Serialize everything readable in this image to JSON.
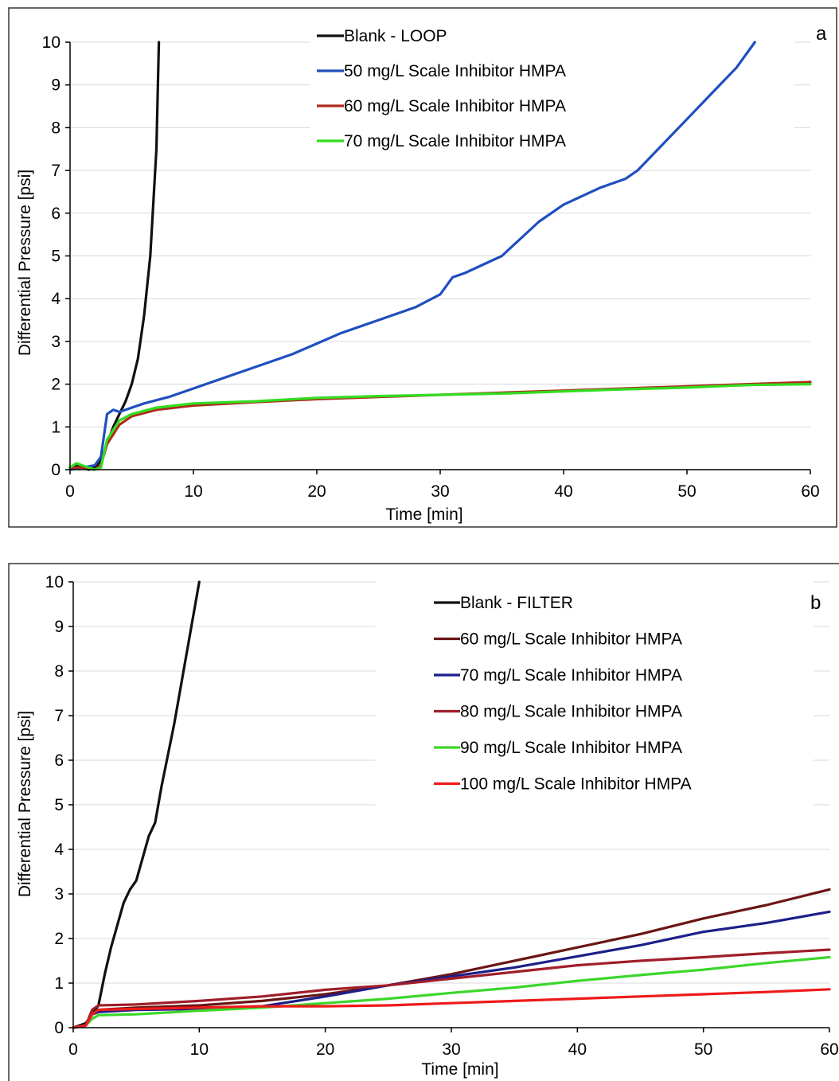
{
  "chart_data": [
    {
      "type": "line",
      "panel_label": "a",
      "xlabel": "Time [min]",
      "ylabel": "Differential Pressure [psi]",
      "xlim": [
        0,
        60
      ],
      "ylim": [
        0,
        10
      ],
      "xticks": [
        0,
        10,
        20,
        30,
        40,
        50,
        60
      ],
      "yticks": [
        0,
        1,
        2,
        3,
        4,
        5,
        6,
        7,
        8,
        9,
        10
      ],
      "grid": "horizontal",
      "legend_position": "top-center",
      "series": [
        {
          "name": "Blank - LOOP",
          "color": "#111111",
          "x": [
            0,
            0.5,
            1,
            1.5,
            2,
            2.5,
            3,
            3.5,
            4,
            4.5,
            5,
            5.5,
            6,
            6.5,
            7,
            7.2
          ],
          "y": [
            0.05,
            0.1,
            0.05,
            0.0,
            0.05,
            0.2,
            0.6,
            1.0,
            1.3,
            1.6,
            2.0,
            2.6,
            3.6,
            5.0,
            7.5,
            10.0
          ]
        },
        {
          "name": "50 mg/L Scale Inhibitor HMPA",
          "color": "#1f4fbf",
          "x": [
            0,
            1,
            2,
            2.5,
            3,
            3.5,
            4,
            5,
            6,
            8,
            10,
            12,
            15,
            18,
            20,
            22,
            25,
            28,
            30,
            31,
            32,
            35,
            38,
            40,
            43,
            45,
            46,
            48,
            50,
            52,
            54,
            55.5
          ],
          "y": [
            0.0,
            0.05,
            0.1,
            0.3,
            1.3,
            1.4,
            1.35,
            1.45,
            1.55,
            1.7,
            1.9,
            2.1,
            2.4,
            2.7,
            2.95,
            3.2,
            3.5,
            3.8,
            4.1,
            4.5,
            4.6,
            5.0,
            5.8,
            6.2,
            6.6,
            6.8,
            7.0,
            7.6,
            8.2,
            8.8,
            9.4,
            10.0
          ]
        },
        {
          "name": "60 mg/L Scale Inhibitor HMPA",
          "color": "#b02a1c",
          "x": [
            0,
            1,
            2,
            2.5,
            3,
            4,
            5,
            7,
            10,
            15,
            20,
            25,
            30,
            35,
            40,
            45,
            50,
            55,
            60
          ],
          "y": [
            0.05,
            0.05,
            0.0,
            0.1,
            0.6,
            1.05,
            1.25,
            1.4,
            1.5,
            1.58,
            1.65,
            1.7,
            1.75,
            1.8,
            1.85,
            1.9,
            1.95,
            2.0,
            2.05
          ]
        },
        {
          "name": "70 mg/L Scale Inhibitor HMPA",
          "color": "#33dd22",
          "x": [
            0,
            0.5,
            1,
            2,
            2.5,
            3,
            4,
            5,
            7,
            10,
            15,
            20,
            25,
            30,
            35,
            40,
            45,
            50,
            55,
            60
          ],
          "y": [
            0.05,
            0.15,
            0.1,
            0.0,
            0.05,
            0.7,
            1.15,
            1.3,
            1.45,
            1.55,
            1.6,
            1.68,
            1.72,
            1.75,
            1.78,
            1.83,
            1.88,
            1.92,
            1.98,
            2.0
          ]
        }
      ]
    },
    {
      "type": "line",
      "panel_label": "b",
      "xlabel": "Time [min]",
      "ylabel": "Differential Pressure [psi]",
      "xlim": [
        0,
        60
      ],
      "ylim": [
        0,
        10
      ],
      "xticks": [
        0,
        10,
        20,
        30,
        40,
        50,
        60
      ],
      "yticks": [
        0,
        1,
        2,
        3,
        4,
        5,
        6,
        7,
        8,
        9,
        10
      ],
      "grid": "horizontal",
      "legend_position": "top-right",
      "series": [
        {
          "name": "Blank - FILTER",
          "color": "#111111",
          "x": [
            0,
            1,
            1.5,
            2,
            2.5,
            3,
            4,
            4.5,
            5,
            6,
            6.5,
            7,
            8,
            9,
            10
          ],
          "y": [
            0.0,
            0.1,
            0.3,
            0.5,
            1.2,
            1.8,
            2.8,
            3.1,
            3.3,
            4.3,
            4.6,
            5.4,
            6.8,
            8.4,
            10.0
          ]
        },
        {
          "name": "60 mg/L Scale Inhibitor HMPA",
          "color": "#6b1515",
          "x": [
            0,
            1,
            1.5,
            2,
            5,
            10,
            15,
            20,
            25,
            30,
            35,
            40,
            45,
            50,
            55,
            60
          ],
          "y": [
            0.0,
            0.05,
            0.3,
            0.4,
            0.45,
            0.5,
            0.6,
            0.75,
            0.95,
            1.2,
            1.5,
            1.8,
            2.1,
            2.45,
            2.75,
            3.1
          ]
        },
        {
          "name": "70 mg/L Scale Inhibitor HMPA",
          "color": "#1c1f8a",
          "x": [
            0,
            1,
            1.5,
            2,
            5,
            10,
            15,
            20,
            25,
            30,
            35,
            40,
            45,
            50,
            55,
            60
          ],
          "y": [
            0.0,
            0.05,
            0.3,
            0.35,
            0.4,
            0.42,
            0.48,
            0.7,
            0.95,
            1.15,
            1.35,
            1.6,
            1.85,
            2.15,
            2.35,
            2.6
          ]
        },
        {
          "name": "80 mg/L Scale Inhibitor HMPA",
          "color": "#a01e2a",
          "x": [
            0,
            1,
            1.5,
            2,
            5,
            10,
            15,
            20,
            25,
            30,
            35,
            40,
            45,
            50,
            55,
            60
          ],
          "y": [
            0.0,
            0.05,
            0.4,
            0.5,
            0.52,
            0.6,
            0.7,
            0.85,
            0.95,
            1.1,
            1.25,
            1.4,
            1.5,
            1.58,
            1.67,
            1.75
          ]
        },
        {
          "name": "90 mg/L Scale Inhibitor HMPA",
          "color": "#3cd62a",
          "x": [
            0,
            1,
            1.5,
            2,
            5,
            10,
            15,
            20,
            25,
            30,
            35,
            40,
            45,
            50,
            55,
            60
          ],
          "y": [
            0.0,
            0.05,
            0.2,
            0.28,
            0.3,
            0.38,
            0.45,
            0.55,
            0.65,
            0.78,
            0.9,
            1.05,
            1.18,
            1.3,
            1.45,
            1.58
          ]
        },
        {
          "name": "100 mg/L Scale Inhibitor HMPA",
          "color": "#ee1a1a",
          "x": [
            0,
            1,
            1.5,
            2,
            5,
            10,
            15,
            20,
            25,
            30,
            35,
            40,
            45,
            50,
            55,
            60
          ],
          "y": [
            0.0,
            0.05,
            0.3,
            0.4,
            0.42,
            0.45,
            0.48,
            0.48,
            0.5,
            0.55,
            0.6,
            0.65,
            0.7,
            0.75,
            0.8,
            0.86
          ]
        }
      ]
    }
  ]
}
